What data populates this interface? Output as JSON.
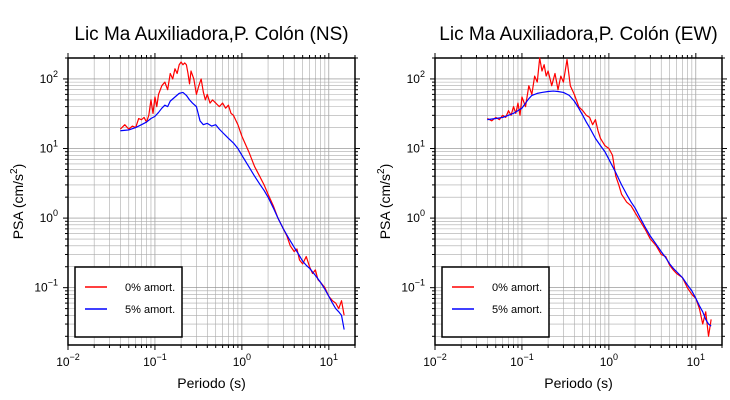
{
  "chart_data": [
    {
      "type": "line",
      "title": "Lic Ma Auxiliadora,P. Colón (NS)",
      "xlabel": "Periodo (s)",
      "ylabel_main": "PSA (cm/s",
      "ylabel_sup": "2",
      "ylabel_end": ")",
      "xscale": "log",
      "yscale": "log",
      "xlim": [
        0.01,
        20
      ],
      "ylim": [
        0.015,
        200
      ],
      "grid": true,
      "legend_position": "bottom-left",
      "x_ticks": [
        {
          "value": 0.01,
          "base": "10",
          "exp": "−2"
        },
        {
          "value": 0.1,
          "base": "10",
          "exp": "−1"
        },
        {
          "value": 1,
          "base": "10",
          "exp": "0"
        },
        {
          "value": 10,
          "base": "10",
          "exp": "1"
        }
      ],
      "y_ticks": [
        {
          "value": 0.1,
          "base": "10",
          "exp": "−1"
        },
        {
          "value": 1,
          "base": "10",
          "exp": "0"
        },
        {
          "value": 10,
          "base": "10",
          "exp": "1"
        },
        {
          "value": 100,
          "base": "10",
          "exp": "2"
        }
      ],
      "series": [
        {
          "name": "0% amort.",
          "color": "#ff0000",
          "points": [
            [
              0.04,
              19
            ],
            [
              0.045,
              22
            ],
            [
              0.05,
              19
            ],
            [
              0.055,
              21
            ],
            [
              0.06,
              20
            ],
            [
              0.065,
              27
            ],
            [
              0.07,
              26
            ],
            [
              0.075,
              28
            ],
            [
              0.08,
              24
            ],
            [
              0.085,
              30
            ],
            [
              0.09,
              50
            ],
            [
              0.095,
              32
            ],
            [
              0.1,
              55
            ],
            [
              0.105,
              40
            ],
            [
              0.11,
              60
            ],
            [
              0.12,
              80
            ],
            [
              0.13,
              90
            ],
            [
              0.14,
              70
            ],
            [
              0.15,
              120
            ],
            [
              0.16,
              100
            ],
            [
              0.17,
              140
            ],
            [
              0.18,
              120
            ],
            [
              0.19,
              160
            ],
            [
              0.2,
              175
            ],
            [
              0.21,
              160
            ],
            [
              0.22,
              170
            ],
            [
              0.23,
              160
            ],
            [
              0.24,
              120
            ],
            [
              0.25,
              85
            ],
            [
              0.26,
              130
            ],
            [
              0.28,
              100
            ],
            [
              0.3,
              60
            ],
            [
              0.32,
              80
            ],
            [
              0.34,
              100
            ],
            [
              0.36,
              65
            ],
            [
              0.38,
              50
            ],
            [
              0.4,
              60
            ],
            [
              0.43,
              45
            ],
            [
              0.46,
              50
            ],
            [
              0.5,
              45
            ],
            [
              0.55,
              40
            ],
            [
              0.6,
              45
            ],
            [
              0.65,
              38
            ],
            [
              0.7,
              42
            ],
            [
              0.75,
              32
            ],
            [
              0.8,
              30
            ],
            [
              0.9,
              22
            ],
            [
              1,
              15
            ],
            [
              1.2,
              9
            ],
            [
              1.4,
              5.5
            ],
            [
              1.6,
              4
            ],
            [
              1.8,
              3
            ],
            [
              2,
              2.2
            ],
            [
              2.3,
              1.5
            ],
            [
              2.6,
              1
            ],
            [
              3,
              0.7
            ],
            [
              3.3,
              0.55
            ],
            [
              3.6,
              0.4
            ],
            [
              4,
              0.33
            ],
            [
              4.3,
              0.36
            ],
            [
              4.6,
              0.25
            ],
            [
              5,
              0.22
            ],
            [
              5.5,
              0.28
            ],
            [
              6,
              0.2
            ],
            [
              6.5,
              0.16
            ],
            [
              7,
              0.18
            ],
            [
              7.5,
              0.13
            ],
            [
              8,
              0.12
            ],
            [
              9,
              0.1
            ],
            [
              10,
              0.075
            ],
            [
              11,
              0.065
            ],
            [
              12,
              0.06
            ],
            [
              13,
              0.05
            ],
            [
              14,
              0.065
            ],
            [
              15,
              0.04
            ]
          ]
        },
        {
          "name": "5% amort.",
          "color": "#0000ff",
          "points": [
            [
              0.04,
              18
            ],
            [
              0.05,
              18.5
            ],
            [
              0.06,
              20
            ],
            [
              0.07,
              22
            ],
            [
              0.08,
              24
            ],
            [
              0.09,
              27
            ],
            [
              0.1,
              29
            ],
            [
              0.11,
              33
            ],
            [
              0.12,
              38
            ],
            [
              0.13,
              42
            ],
            [
              0.14,
              40
            ],
            [
              0.15,
              48
            ],
            [
              0.17,
              55
            ],
            [
              0.19,
              62
            ],
            [
              0.21,
              64
            ],
            [
              0.23,
              58
            ],
            [
              0.25,
              50
            ],
            [
              0.27,
              45
            ],
            [
              0.3,
              40
            ],
            [
              0.33,
              25
            ],
            [
              0.36,
              22
            ],
            [
              0.4,
              23
            ],
            [
              0.45,
              21
            ],
            [
              0.5,
              22
            ],
            [
              0.55,
              19
            ],
            [
              0.6,
              17
            ],
            [
              0.7,
              14
            ],
            [
              0.8,
              12
            ],
            [
              0.9,
              10
            ],
            [
              1,
              8
            ],
            [
              1.2,
              5.5
            ],
            [
              1.4,
              4
            ],
            [
              1.6,
              3.1
            ],
            [
              1.8,
              2.5
            ],
            [
              2,
              2
            ],
            [
              2.3,
              1.4
            ],
            [
              2.6,
              1
            ],
            [
              3,
              0.7
            ],
            [
              3.5,
              0.5
            ],
            [
              4,
              0.38
            ],
            [
              4.5,
              0.3
            ],
            [
              5,
              0.24
            ],
            [
              5.5,
              0.21
            ],
            [
              6,
              0.19
            ],
            [
              7,
              0.15
            ],
            [
              8,
              0.12
            ],
            [
              9,
              0.095
            ],
            [
              10,
              0.075
            ],
            [
              11,
              0.06
            ],
            [
              12,
              0.05
            ],
            [
              13,
              0.045
            ],
            [
              14,
              0.04
            ],
            [
              15,
              0.025
            ]
          ]
        }
      ]
    },
    {
      "type": "line",
      "title": "Lic Ma Auxiliadora,P. Colón (EW)",
      "xlabel": "Periodo (s)",
      "ylabel_main": "PSA (cm/s",
      "ylabel_sup": "2",
      "ylabel_end": ")",
      "xscale": "log",
      "yscale": "log",
      "xlim": [
        0.01,
        20
      ],
      "ylim": [
        0.015,
        200
      ],
      "grid": true,
      "legend_position": "bottom-left",
      "x_ticks": [
        {
          "value": 0.01,
          "base": "10",
          "exp": "−2"
        },
        {
          "value": 0.1,
          "base": "10",
          "exp": "−1"
        },
        {
          "value": 1,
          "base": "10",
          "exp": "0"
        },
        {
          "value": 10,
          "base": "10",
          "exp": "1"
        }
      ],
      "y_ticks": [
        {
          "value": 0.1,
          "base": "10",
          "exp": "−1"
        },
        {
          "value": 1,
          "base": "10",
          "exp": "0"
        },
        {
          "value": 10,
          "base": "10",
          "exp": "1"
        },
        {
          "value": 100,
          "base": "10",
          "exp": "2"
        }
      ],
      "series": [
        {
          "name": "0% amort.",
          "color": "#ff0000",
          "points": [
            [
              0.04,
              27
            ],
            [
              0.045,
              25
            ],
            [
              0.05,
              28
            ],
            [
              0.055,
              26
            ],
            [
              0.06,
              30
            ],
            [
              0.065,
              28
            ],
            [
              0.07,
              35
            ],
            [
              0.075,
              30
            ],
            [
              0.08,
              40
            ],
            [
              0.085,
              32
            ],
            [
              0.09,
              45
            ],
            [
              0.095,
              30
            ],
            [
              0.1,
              55
            ],
            [
              0.11,
              40
            ],
            [
              0.12,
              80
            ],
            [
              0.13,
              60
            ],
            [
              0.14,
              110
            ],
            [
              0.15,
              90
            ],
            [
              0.16,
              200
            ],
            [
              0.17,
              130
            ],
            [
              0.18,
              160
            ],
            [
              0.19,
              110
            ],
            [
              0.2,
              130
            ],
            [
              0.22,
              80
            ],
            [
              0.24,
              120
            ],
            [
              0.26,
              70
            ],
            [
              0.28,
              110
            ],
            [
              0.3,
              90
            ],
            [
              0.33,
              190
            ],
            [
              0.36,
              80
            ],
            [
              0.4,
              60
            ],
            [
              0.45,
              40
            ],
            [
              0.5,
              35
            ],
            [
              0.55,
              30
            ],
            [
              0.6,
              28
            ],
            [
              0.65,
              22
            ],
            [
              0.7,
              26
            ],
            [
              0.75,
              18
            ],
            [
              0.8,
              14
            ],
            [
              0.9,
              11
            ],
            [
              1,
              10
            ],
            [
              1.1,
              8
            ],
            [
              1.2,
              4
            ],
            [
              1.3,
              3
            ],
            [
              1.4,
              2.2
            ],
            [
              1.6,
              1.7
            ],
            [
              1.8,
              1.5
            ],
            [
              2,
              1.2
            ],
            [
              2.3,
              0.9
            ],
            [
              2.6,
              0.7
            ],
            [
              3,
              0.5
            ],
            [
              3.5,
              0.4
            ],
            [
              4,
              0.3
            ],
            [
              4.5,
              0.28
            ],
            [
              5,
              0.21
            ],
            [
              5.5,
              0.18
            ],
            [
              6,
              0.16
            ],
            [
              7,
              0.14
            ],
            [
              8,
              0.1
            ],
            [
              9,
              0.08
            ],
            [
              10,
              0.07
            ],
            [
              11,
              0.05
            ],
            [
              12,
              0.03
            ],
            [
              13,
              0.045
            ],
            [
              14,
              0.02
            ],
            [
              15,
              0.035
            ]
          ]
        },
        {
          "name": "5% amort.",
          "color": "#0000ff",
          "points": [
            [
              0.04,
              26
            ],
            [
              0.05,
              27
            ],
            [
              0.06,
              28
            ],
            [
              0.07,
              30
            ],
            [
              0.08,
              32
            ],
            [
              0.09,
              35
            ],
            [
              0.1,
              38
            ],
            [
              0.11,
              45
            ],
            [
              0.12,
              52
            ],
            [
              0.13,
              58
            ],
            [
              0.15,
              62
            ],
            [
              0.17,
              64
            ],
            [
              0.2,
              66
            ],
            [
              0.23,
              67
            ],
            [
              0.26,
              66
            ],
            [
              0.3,
              64
            ],
            [
              0.35,
              58
            ],
            [
              0.4,
              48
            ],
            [
              0.45,
              38
            ],
            [
              0.5,
              30
            ],
            [
              0.55,
              24
            ],
            [
              0.6,
              20
            ],
            [
              0.7,
              14
            ],
            [
              0.8,
              11
            ],
            [
              0.9,
              9
            ],
            [
              1,
              7
            ],
            [
              1.2,
              4.5
            ],
            [
              1.4,
              3
            ],
            [
              1.6,
              2.2
            ],
            [
              1.8,
              1.7
            ],
            [
              2,
              1.4
            ],
            [
              2.3,
              1
            ],
            [
              2.6,
              0.75
            ],
            [
              3,
              0.55
            ],
            [
              3.5,
              0.42
            ],
            [
              4,
              0.33
            ],
            [
              4.5,
              0.27
            ],
            [
              5,
              0.22
            ],
            [
              5.5,
              0.19
            ],
            [
              6,
              0.17
            ],
            [
              7,
              0.14
            ],
            [
              8,
              0.11
            ],
            [
              9,
              0.09
            ],
            [
              10,
              0.07
            ],
            [
              11,
              0.055
            ],
            [
              12,
              0.045
            ],
            [
              13,
              0.035
            ],
            [
              14,
              0.03
            ],
            [
              15,
              0.028
            ]
          ]
        }
      ]
    }
  ]
}
